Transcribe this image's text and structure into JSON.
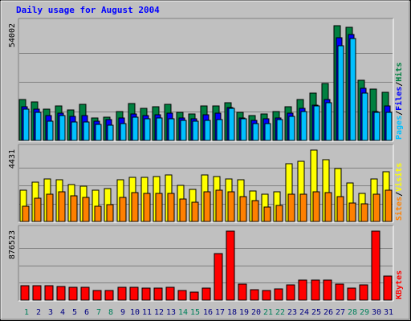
{
  "title": "Daily usage for August 2004",
  "colors": {
    "frame_bg": "#C0C0C0",
    "plot_bg": "#C0C0C0",
    "grid": "#808080",
    "hits": "#008040",
    "files": "#0000FF",
    "pages": "#00C0FF",
    "visits": "#FFFF00",
    "sites": "#FF8000",
    "kbytes": "#FF0000",
    "title": "#0000FF",
    "weekday_label": "#008040",
    "weekend_label": "#00805C"
  },
  "chart_data": [
    {
      "type": "bar",
      "name": "hits-files-pages",
      "x": [
        1,
        2,
        3,
        4,
        5,
        6,
        7,
        8,
        9,
        10,
        11,
        12,
        13,
        14,
        15,
        16,
        17,
        18,
        19,
        20,
        21,
        22,
        23,
        24,
        25,
        26,
        27,
        28,
        29,
        30,
        31
      ],
      "ymax_label": "54002",
      "ymax": 54002,
      "ylabel_parts": [
        "Pages",
        "/",
        "Files",
        "/",
        "Hits"
      ],
      "series": [
        {
          "name": "Hits",
          "values": [
            19000,
            17800,
            14600,
            16000,
            14100,
            16800,
            10200,
            10800,
            13300,
            17100,
            14700,
            15500,
            16700,
            12800,
            12100,
            15800,
            15800,
            17200,
            12900,
            11300,
            12100,
            13300,
            15400,
            18900,
            21700,
            26100,
            53000,
            52100,
            27800,
            23500,
            22300
          ]
        },
        {
          "name": "Files",
          "values": [
            15700,
            14500,
            11400,
            12500,
            11000,
            11400,
            9000,
            9500,
            10500,
            12300,
            11300,
            11700,
            12400,
            10200,
            9900,
            11800,
            12400,
            15000,
            10500,
            9100,
            9900,
            10400,
            12700,
            14700,
            16100,
            18800,
            47500,
            49000,
            24000,
            13500,
            15900
          ]
        },
        {
          "name": "Pages",
          "values": [
            14300,
            12900,
            8900,
            11400,
            8600,
            8600,
            7500,
            7000,
            7800,
            10900,
            10100,
            10300,
            10100,
            9300,
            8900,
            9400,
            9800,
            14700,
            9900,
            7700,
            7700,
            9600,
            11000,
            13200,
            16000,
            17500,
            43500,
            46800,
            21800,
            12800,
            12800
          ]
        }
      ]
    },
    {
      "type": "bar",
      "name": "visits-sites",
      "x": [
        1,
        2,
        3,
        4,
        5,
        6,
        7,
        8,
        9,
        10,
        11,
        12,
        13,
        14,
        15,
        16,
        17,
        18,
        19,
        20,
        21,
        22,
        23,
        24,
        25,
        26,
        27,
        28,
        29,
        30,
        31
      ],
      "ymax_label": "4431",
      "ymax": 4431,
      "ylabel_parts": [
        "Sites",
        "/",
        "Visits"
      ],
      "series": [
        {
          "name": "Visits",
          "values": [
            1940,
            2420,
            2600,
            2550,
            2270,
            2180,
            1910,
            2010,
            2580,
            2700,
            2690,
            2780,
            2850,
            2220,
            1990,
            2880,
            2770,
            2610,
            2540,
            1860,
            1680,
            1810,
            3530,
            3690,
            4400,
            3800,
            3240,
            2340,
            1720,
            2600,
            3040
          ]
        },
        {
          "name": "Sites",
          "values": [
            920,
            1450,
            1650,
            1800,
            1580,
            1500,
            920,
            1020,
            1500,
            1770,
            1710,
            1740,
            1740,
            1360,
            1190,
            1800,
            1900,
            1840,
            1530,
            1280,
            890,
            1000,
            1670,
            1670,
            1800,
            1770,
            1530,
            1120,
            1100,
            1680,
            1920
          ]
        }
      ]
    },
    {
      "type": "bar",
      "name": "kbytes",
      "x": [
        1,
        2,
        3,
        4,
        5,
        6,
        7,
        8,
        9,
        10,
        11,
        12,
        13,
        14,
        15,
        16,
        17,
        18,
        19,
        20,
        21,
        22,
        23,
        24,
        25,
        26,
        27,
        28,
        29,
        30,
        31
      ],
      "ymax_label": "876523",
      "ymax": 876523,
      "ylabel_parts": [
        "KBytes"
      ],
      "series": [
        {
          "name": "KBytes",
          "values": [
            186000,
            180000,
            180000,
            174000,
            161000,
            161000,
            124000,
            124000,
            161000,
            161000,
            155000,
            155000,
            161000,
            118000,
            105000,
            155000,
            589000,
            867000,
            198000,
            136000,
            124000,
            143000,
            192000,
            254000,
            248000,
            248000,
            205000,
            155000,
            192000,
            867000,
            304000
          ]
        }
      ]
    }
  ],
  "x_labels": [
    "1",
    "2",
    "3",
    "4",
    "5",
    "6",
    "7",
    "8",
    "9",
    "10",
    "11",
    "12",
    "13",
    "14",
    "15",
    "16",
    "17",
    "18",
    "19",
    "20",
    "21",
    "22",
    "23",
    "24",
    "25",
    "26",
    "27",
    "28",
    "29",
    "30",
    "31"
  ],
  "weekend_days": [
    1,
    7,
    8,
    14,
    15,
    21,
    22,
    28,
    29
  ]
}
